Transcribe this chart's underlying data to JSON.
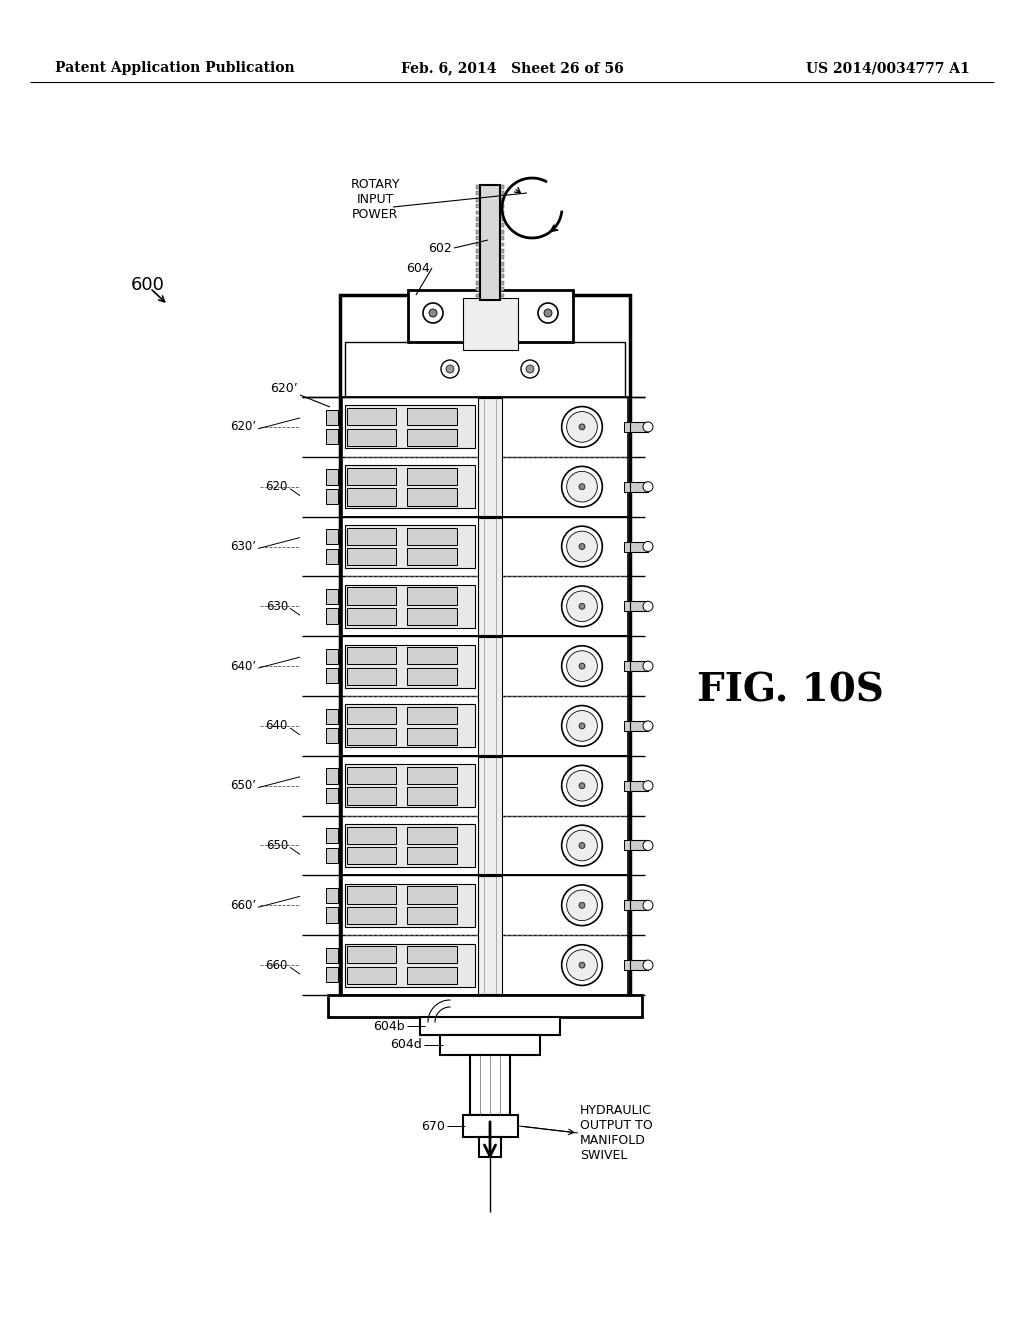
{
  "header_left": "Patent Application Publication",
  "header_center": "Feb. 6, 2014   Sheet 26 of 56",
  "header_right": "US 2014/0034777 A1",
  "fig_label": "FIG. 10S",
  "fig_number": "600",
  "label_602": "602",
  "label_604": "604",
  "label_604b": "604b",
  "label_604d": "604d",
  "label_670": "670",
  "text_rotary": "ROTARY\nINPUT\nPOWER",
  "text_hydraulic": "HYDRAULIC\nOUTPUT TO\nMANIFOLD\nSWIVEL",
  "module_pairs": [
    [
      "620’",
      "620"
    ],
    [
      "630’",
      "630"
    ],
    [
      "640’",
      "640"
    ],
    [
      "650’",
      "650"
    ],
    [
      "660’",
      "660"
    ]
  ],
  "bg_color": "#ffffff"
}
